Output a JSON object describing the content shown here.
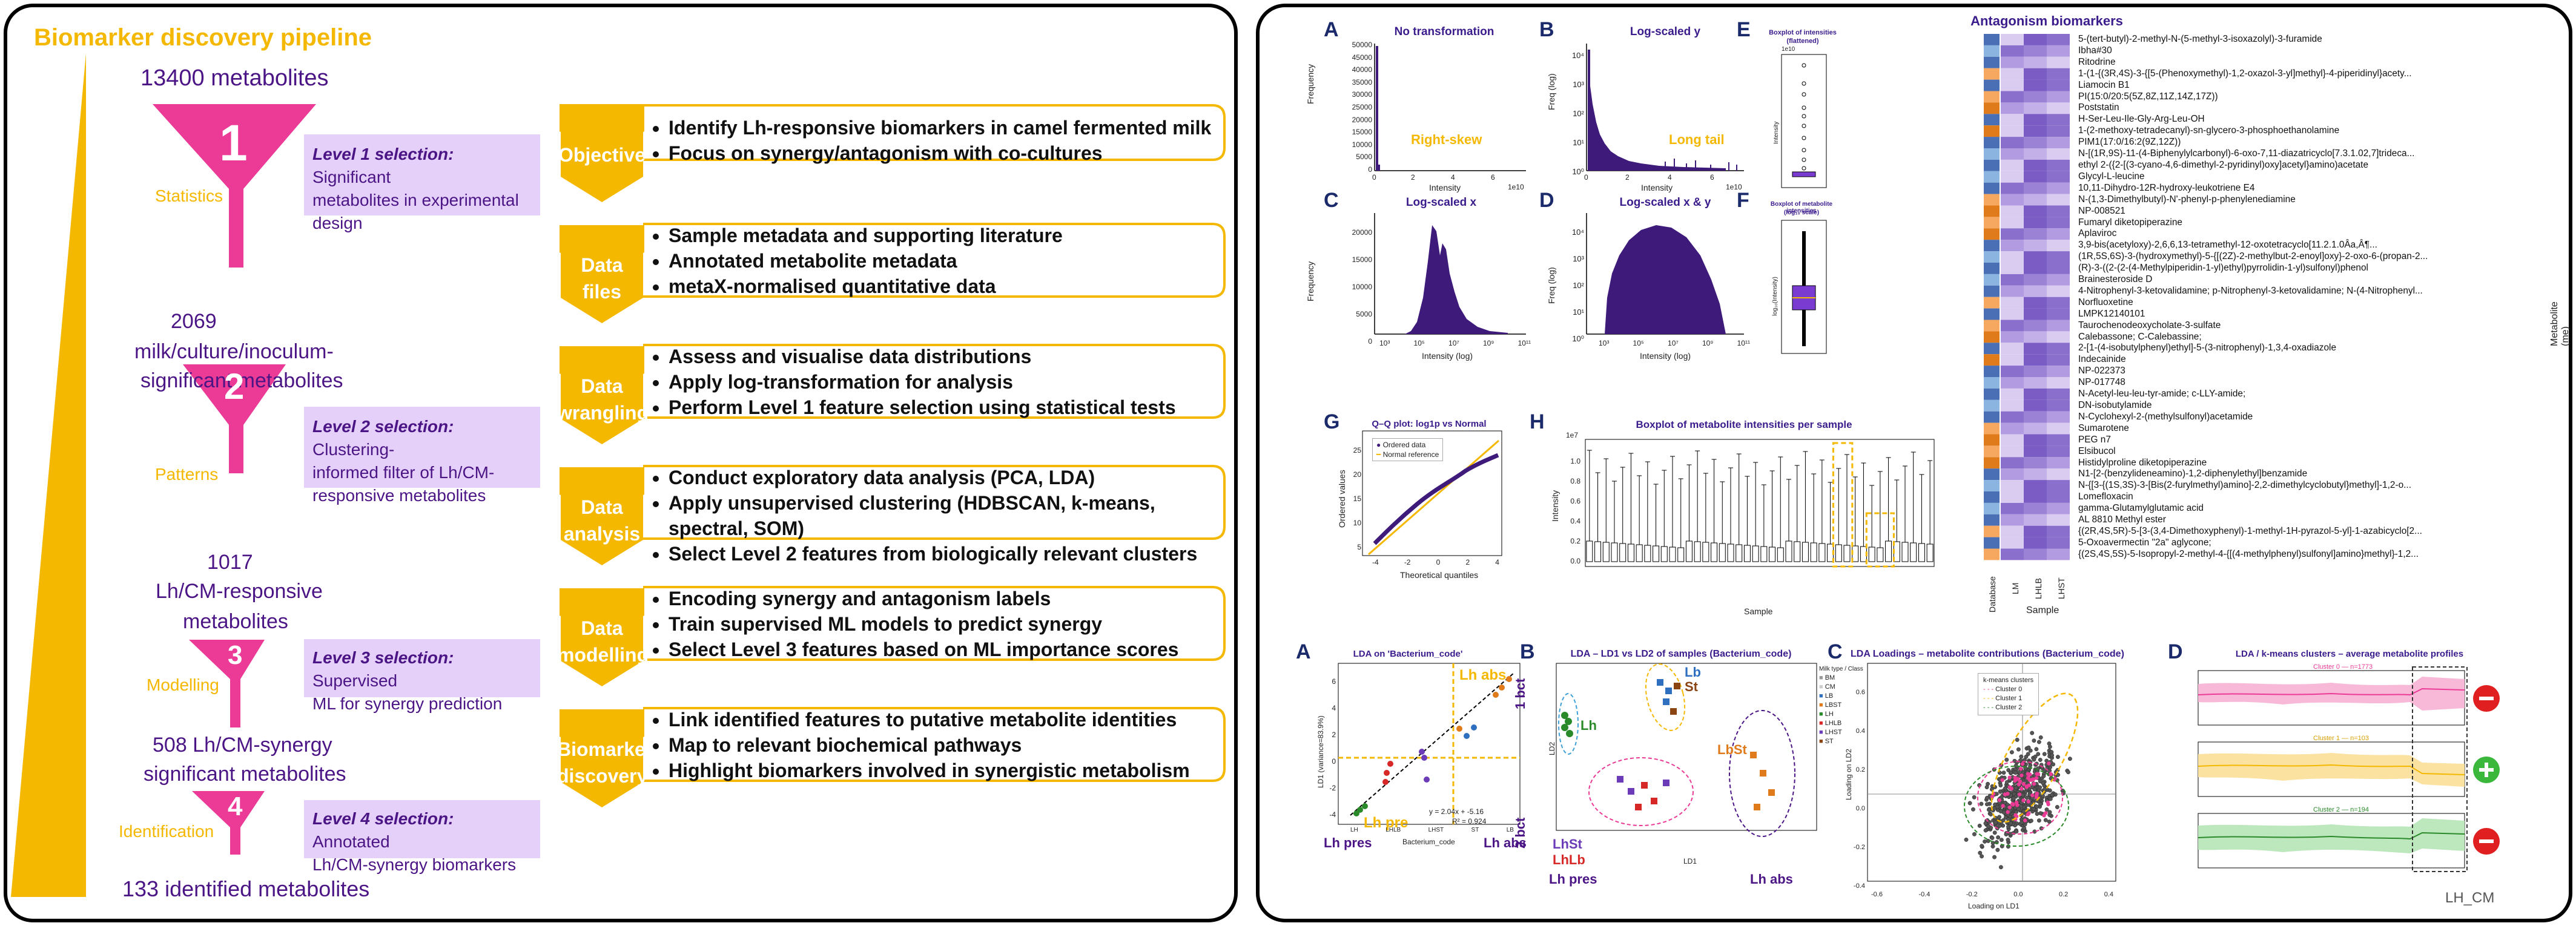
{
  "pipeline": {
    "title": "Biomarker discovery pipeline",
    "counts": {
      "c0": "13400 metabolites",
      "c1a": "2069",
      "c1b": "milk/culture/inoculum-",
      "c1c": "significant metabolites",
      "c2a": "1017",
      "c2b": "Lh/CM-responsive",
      "c2c": "metabolites",
      "c3a": "508 Lh/CM-synergy",
      "c3b": "significant metabolites",
      "c4": "133 identified metabolites"
    },
    "levels": [
      {
        "num": "1",
        "side": "Statistics",
        "bold": "Level 1 selection:",
        "l1": " Significant",
        "l2": "metabolites in experimental",
        "l3": "design"
      },
      {
        "num": "2",
        "side": "Patterns",
        "bold": "Level 2 selection:",
        "l1": " Clustering-",
        "l2": "informed filter of Lh/CM-",
        "l3": "responsive metabolites"
      },
      {
        "num": "3",
        "side": "Modelling",
        "bold": "Level 3 selection:",
        "l1": " Supervised",
        "l2": "ML for synergy prediction",
        "l3": ""
      },
      {
        "num": "4",
        "side": "Identification",
        "bold": "Level 4 selection:",
        "l1": " Annotated",
        "l2": "Lh/CM-synergy biomarkers",
        "l3": ""
      }
    ],
    "steps": [
      {
        "label1": "Objective",
        "label2": "",
        "items": [
          "Identify Lh-responsive biomarkers in camel fermented milk",
          "Focus on synergy/antagonism with co-cultures"
        ]
      },
      {
        "label1": "Data",
        "label2": "files",
        "items": [
          "Sample metadata and supporting literature",
          "Annotated metabolite metadata",
          "metaX-normalised quantitative data"
        ]
      },
      {
        "label1": "Data",
        "label2": "wrangling",
        "items": [
          "Assess and visualise data distributions",
          "Apply log-transformation for analysis",
          "Perform Level 1 feature selection using statistical tests"
        ]
      },
      {
        "label1": "Data",
        "label2": "analysis",
        "items": [
          "Conduct exploratory data analysis (PCA, LDA)",
          "Apply unsupervised clustering (HDBSCAN, k-means, spectral, SOM)",
          "Select Level 2 features from biologically relevant clusters"
        ]
      },
      {
        "label1": "Data",
        "label2": "modelling",
        "items": [
          "Encoding synergy and antagonism labels",
          "Train supervised ML models to predict synergy",
          "Select Level 3 features based on ML importance scores"
        ]
      },
      {
        "label1": "Biomarker",
        "label2": "discovery",
        "items": [
          "Link identified features to putative metabolite identities",
          "Map to relevant biochemical pathways",
          "Highlight biomarkers involved in synergistic metabolism"
        ]
      }
    ]
  },
  "top_figs": {
    "A": {
      "letter": "A",
      "title": "No transformation",
      "xlabel": "Intensity",
      "ylabel": "Frequency",
      "note": "Right-skew",
      "exp": "1e10",
      "yticks": [
        "50000",
        "45000",
        "40000",
        "35000",
        "30000",
        "25000",
        "20000",
        "15000",
        "10000",
        "5000",
        "0"
      ],
      "xticks": [
        "0",
        "2",
        "4",
        "6"
      ]
    },
    "B": {
      "letter": "B",
      "title": "Log-scaled y",
      "xlabel": "Intensity",
      "ylabel": "Freq (log)",
      "note": "Long tail",
      "exp": "1e10",
      "yticks": [
        "10⁴",
        "10³",
        "10²",
        "10¹",
        "10⁰"
      ],
      "xticks": [
        "0",
        "2",
        "4",
        "6"
      ]
    },
    "C": {
      "letter": "C",
      "title": "Log-scaled x",
      "xlabel": "Intensity (log)",
      "ylabel": "Frequency",
      "yticks": [
        "20000",
        "15000",
        "10000",
        "5000",
        "0"
      ],
      "xticks": [
        "10³",
        "10⁵",
        "10⁷",
        "10⁹",
        "10¹¹"
      ]
    },
    "D": {
      "letter": "D",
      "title": "Log-scaled x & y",
      "xlabel": "Intensity (log)",
      "ylabel": "Freq (log)",
      "yticks": [
        "10⁴",
        "10³",
        "10²",
        "10¹",
        "10⁰"
      ],
      "xticks": [
        "10³",
        "10⁵",
        "10⁷",
        "10⁹",
        "10¹¹"
      ]
    },
    "E": {
      "letter": "E",
      "title1": "Boxplot of intensities",
      "title2": "(flattened)",
      "ylabel": "Intensity",
      "exp": "1e10"
    },
    "F": {
      "letter": "F",
      "title1": "Boxplot of metabolite intensities",
      "title2": "(log₁₀ scale)",
      "ylabel": "log₁₀(Intensity)"
    },
    "G": {
      "letter": "G",
      "title": "Q–Q plot: log1p vs Normal",
      "xlabel": "Theoretical quantiles",
      "ylabel": "Ordered values",
      "legend1": "Ordered data",
      "legend2": "Normal reference",
      "xticks": [
        "-4",
        "-2",
        "0",
        "2",
        "4"
      ],
      "yticks": [
        "25",
        "20",
        "15",
        "10",
        "5"
      ]
    },
    "H": {
      "letter": "H",
      "title": "Boxplot of metabolite intensities per sample",
      "xlabel": "Sample",
      "ylabel": "Intensity",
      "exp": "1e7",
      "yticks": [
        "1.0",
        "0.8",
        "0.6",
        "0.4",
        "0.2",
        "0.0"
      ]
    }
  },
  "heatmap": {
    "title": "Antagonism biomarkers",
    "xlabel": "Sample",
    "ylabel": "Metabolite (me)",
    "cols": [
      "Database",
      "LM",
      "LHLB",
      "LHST"
    ],
    "rows": [
      "5-(tert-butyl)-2-methyl-N-(5-methyl-3-isoxazolyl)-3-furamide",
      "Ibha#30",
      "Ritodrine",
      "1-(1-{(3R,4S)-3-{[5-(Phenoxymethyl)-1,2-oxazol-3-yl]methyl}-4-piperidinyl}acety...",
      "Liamocin B1",
      "PI(15:0/20:5(5Z,8Z,11Z,14Z,17Z))",
      "Poststatin",
      "H-Ser-Leu-Ile-Gly-Arg-Leu-OH",
      "1-(2-methoxy-tetradecanyl)-sn-glycero-3-phosphoethanolamine",
      "PIM1(17:0/16:2(9Z,12Z))",
      "N-[(1R,9S)-11-(4-Biphenylylcarbonyl)-6-oxo-7,11-diazatricyclo[7.3.1.02,7]trideca...",
      "ethyl 2-({2-[(3-cyano-4,6-dimethyl-2-pyridinyl)oxy]acetyl}amino)acetate",
      "Glycyl-L-leucine",
      "10,11-Dihydro-12R-hydroxy-leukotriene E4",
      "N-(1,3-Dimethylbutyl)-N'-phenyl-p-phenylenediamine",
      "NP-008521",
      "Fumaryl diketopiperazine",
      "Aplaviroc",
      "3,9-bis(acetyloxy)-2,6,6,13-tetramethyl-12-oxotetracyclo[11.2.1.0Âa,Â¶...",
      "(1R,5S,6S)-3-(hydroxymethyl)-5-{[(2Z)-2-methylbut-2-enoyl]oxy}-2-oxo-6-(propan-2...",
      "(R)-3-((2-(2-(4-Methylpiperidin-1-yl)ethyl)pyrrolidin-1-yl)sulfonyl)phenol",
      "Brainesteroside D",
      "4-Nitrophenyl-3-ketovalidamine; p-Nitrophenyl-3-ketovalidamine; N-(4-Nitrophenyl...",
      "Norfluoxetine",
      "LMPK12140101",
      "Taurochenodeoxycholate-3-sulfate",
      "Calebassone; C-Calebassine;",
      "2-[1-(4-isobutylphenyl)ethyl]-5-(3-nitrophenyl)-1,3,4-oxadiazole",
      "Indecainide",
      "NP-022373",
      "NP-017748",
      "N-Acetyl-leu-leu-tyr-amide; c-LLY-amide;",
      "DN-isobutylamide",
      "N-Cyclohexyl-2-(methylsulfonyl)acetamide",
      "Sumarotene",
      "PEG n7",
      "Elsibucol",
      "Histidylproline diketopiperazine",
      "N1-[2-(benzylideneamino)-1,2-diphenylethyl]benzamide",
      "N-{[3-{(1S,3S)-3-[Bis(2-furylmethyl)amino]-2,2-dimethylcyclobutyl}methyl]-1,2-o...",
      "Lomefloxacin",
      "gamma-Glutamylglutamic acid",
      "AL 8810 Methyl ester",
      "{(2R,4S,5R)-5-[3-(3,4-Dimethoxyphenyl)-1-methyl-1H-pyrazol-5-yl]-1-azabicyclo[2...",
      "5-Oxoavermectin \"2a\" aglycone;",
      "{(2S,4S,5S)-5-Isopropyl-2-methyl-4-{[(4-methylphenyl)sulfonyl]amino}methyl}-1,2..."
    ]
  },
  "bottom_figs": {
    "A": {
      "letter": "A",
      "title": "LDA on 'Bacterium_code'",
      "xlabel": "Bacterium_code",
      "ylabel": "LD1 (variance=83.9%)",
      "eq1": "y = 2.04x + -5.16",
      "eq2": "R² = 0.924",
      "lh_abs": "Lh abs",
      "lh_pre": "Lh pre",
      "b_pres": "Lh pres",
      "b_abs": "Lh abs",
      "xticks": [
        "LH",
        "LHLB",
        "LHST",
        "ST",
        "LB"
      ],
      "yticks": [
        "6",
        "4",
        "2",
        "0",
        "-2",
        "-4"
      ]
    },
    "B": {
      "letter": "B",
      "title": "LDA – LD1 vs LD2 of samples (Bacterium_code)",
      "xlabel": "LD1",
      "ylabel": "LD2",
      "lh": "Lh",
      "lb": "Lb",
      "st": "St",
      "lbst": "LbSt",
      "lhst": "LhSt",
      "lhlb": "LhLb",
      "bct1": "1 bct",
      "bct2": "2 bct",
      "pres": "Lh pres",
      "abs": "Lh abs",
      "legend_title": "Milk type / Class",
      "legend": [
        "BM",
        "CM",
        "LB",
        "LBST",
        "LH",
        "LHLB",
        "LHST",
        "ST"
      ]
    },
    "C": {
      "letter": "C",
      "title": "LDA Loadings – metabolite contributions (Bacterium_code)",
      "xlabel": "Loading on LD1",
      "ylabel": "Loading on LD2",
      "legend_title": "k-means clusters",
      "legend": [
        "Cluster 0",
        "Cluster 1",
        "Cluster 2"
      ],
      "xticks": [
        "-0.6",
        "-0.4",
        "-0.2",
        "0.0",
        "0.2",
        "0.4"
      ],
      "yticks": [
        "0.6",
        "0.4",
        "0.2",
        "0.0",
        "-0.2",
        "-0.4"
      ]
    },
    "D": {
      "letter": "D",
      "title": "LDA / k-means clusters – average metabolite profiles",
      "c0": "Cluster 0 — n=1773",
      "c1": "Cluster 1 — n=103",
      "c2": "Cluster 2 — n=194",
      "lhcm": "LH_CM",
      "minus": "−",
      "plus": "+"
    }
  },
  "colors": {
    "gold": "#F5B800",
    "magenta": "#EB3B96",
    "purple": "#4B1586",
    "lavender": "#E4D0F8",
    "hist": "#3E1A7A"
  }
}
